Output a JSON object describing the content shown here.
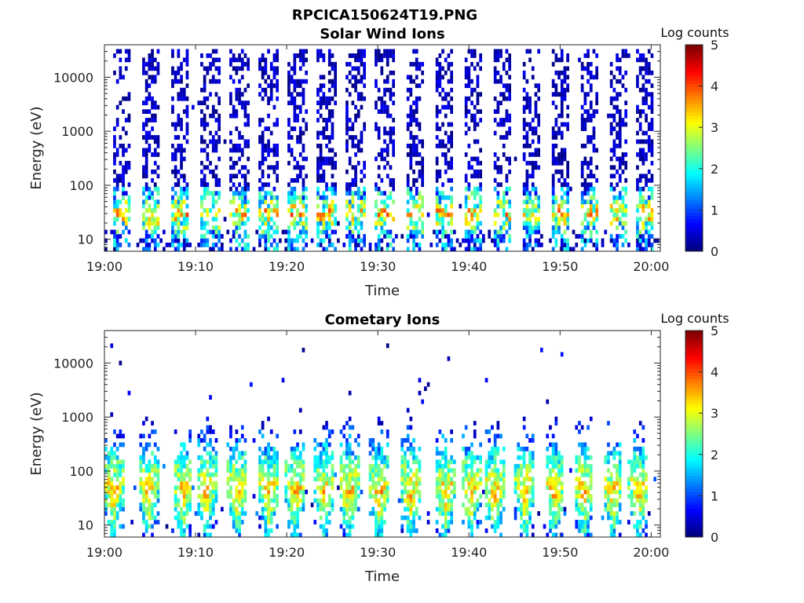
{
  "figure": {
    "title": "RPCICA150624T19.PNG"
  },
  "chart_data": [
    {
      "type": "heatmap",
      "title": "Solar Wind Ions",
      "xlabel": "Time",
      "ylabel": "Energy (eV)",
      "y_scale": "log",
      "ylim": [
        6,
        40000
      ],
      "xlim": [
        "19:00",
        "20:01"
      ],
      "x_ticks": [
        "19:00",
        "19:10",
        "19:20",
        "19:30",
        "19:40",
        "19:50",
        "20:00"
      ],
      "y_ticks": [
        "10",
        "100",
        "1000",
        "10000"
      ],
      "colorbar": {
        "label": "Log counts",
        "min": 0,
        "max": 5,
        "ticks": [
          "0",
          "1",
          "2",
          "3",
          "4",
          "5"
        ],
        "colormap": "jet"
      },
      "burst_times_min": [
        2,
        5.2,
        8.4,
        11.6,
        14.8,
        18,
        21.2,
        24.4,
        27.6,
        30.8,
        34,
        37.2,
        40.4,
        43.6,
        46.8,
        50,
        53.2,
        56.4,
        59.2
      ],
      "energy_range_eV": [
        6,
        35000
      ],
      "peak_energy_eV": 30,
      "typical_log_counts": [
        0,
        2.5
      ],
      "grid": false
    },
    {
      "type": "heatmap",
      "title": "Cometary Ions",
      "xlabel": "Time",
      "ylabel": "Energy (eV)",
      "y_scale": "log",
      "ylim": [
        6,
        40000
      ],
      "xlim": [
        "19:00",
        "20:01"
      ],
      "x_ticks": [
        "19:00",
        "19:10",
        "19:20",
        "19:30",
        "19:40",
        "19:50",
        "20:00"
      ],
      "y_ticks": [
        "10",
        "100",
        "1000",
        "10000"
      ],
      "colorbar": {
        "label": "Log counts",
        "min": 0,
        "max": 5,
        "ticks": [
          "0",
          "1",
          "2",
          "3",
          "4",
          "5"
        ],
        "colormap": "jet"
      },
      "burst_times_min": [
        1,
        4.8,
        8.6,
        11.2,
        14.6,
        18,
        21,
        24.2,
        26.8,
        30.2,
        33.6,
        37.4,
        40.2,
        42.8,
        46.2,
        49.4,
        52.6,
        55.8,
        58.6
      ],
      "energy_range_eV": [
        6,
        1500
      ],
      "peak_energy_eV": 35,
      "typical_log_counts": [
        1,
        3.5
      ],
      "grid": false
    }
  ]
}
